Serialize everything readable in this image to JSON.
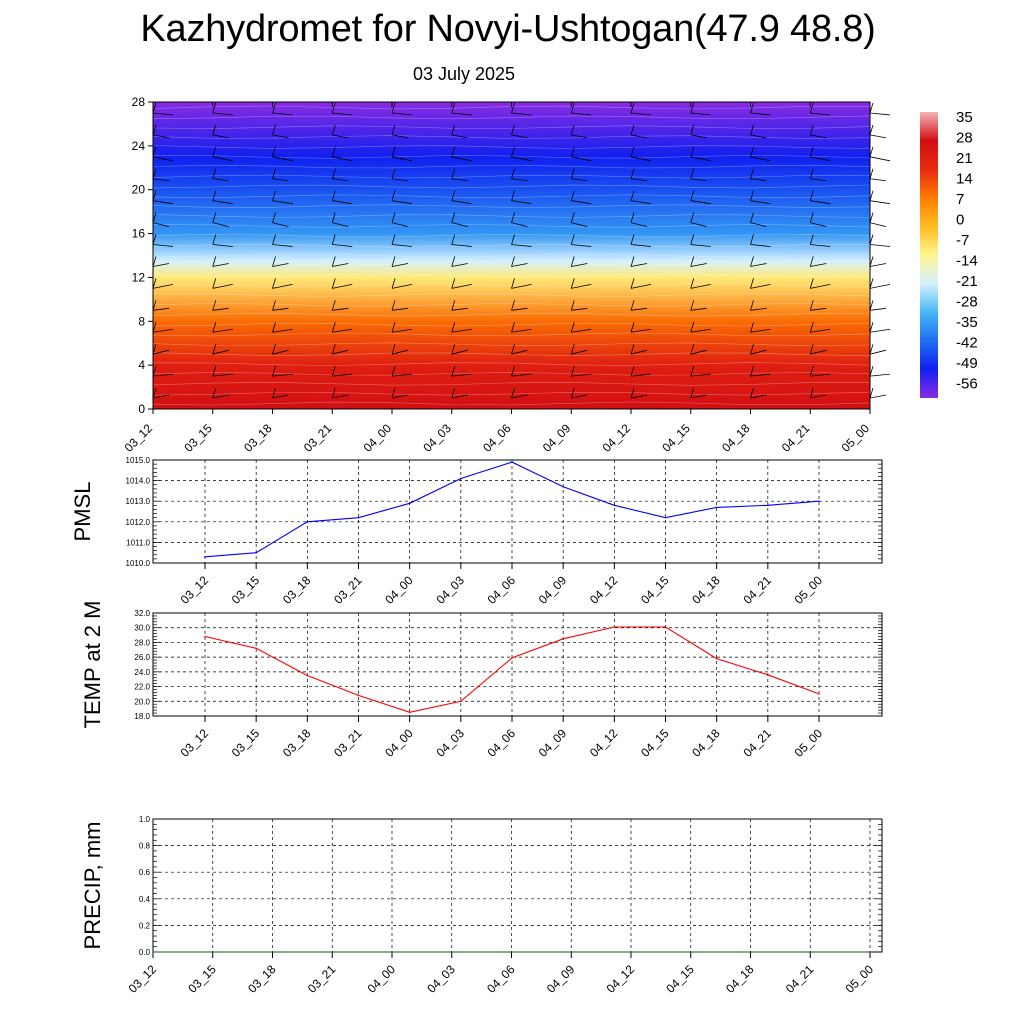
{
  "title": "Kazhydromet for Novyi-Ushtogan(47.9 48.8)",
  "subtitle": "03 July 2025",
  "chart_data": [
    {
      "type": "heatmap",
      "x_ticks": [
        "03_12",
        "03_15",
        "03_18",
        "03_21",
        "04_00",
        "04_03",
        "04_06",
        "04_09",
        "04_12",
        "04_15",
        "04_18",
        "04_21",
        "05_00"
      ],
      "y_ticks": [
        0,
        4,
        8,
        12,
        16,
        20,
        24,
        28
      ],
      "ylim": [
        0,
        28
      ],
      "colorbar_labels": [
        "35",
        "28",
        "21",
        "14",
        "7",
        "0",
        "-7",
        "-14",
        "-21",
        "-28",
        "-35",
        "-42",
        "-49",
        "-56"
      ],
      "colorbar_stops": [
        {
          "value": 38,
          "color": "#f4b4b6"
        },
        {
          "value": 30,
          "color": "#d20f12"
        },
        {
          "value": 20,
          "color": "#e82a10"
        },
        {
          "value": 10,
          "color": "#ff7c00"
        },
        {
          "value": 2,
          "color": "#ffbd1e"
        },
        {
          "value": -8,
          "color": "#fff690"
        },
        {
          "value": -14,
          "color": "#d4f0ff"
        },
        {
          "value": -22,
          "color": "#46b8f5"
        },
        {
          "value": -35,
          "color": "#1f6ff2"
        },
        {
          "value": -48,
          "color": "#1020f0"
        },
        {
          "value": -60,
          "color": "#8a2be2"
        }
      ],
      "profile": [
        {
          "height": 0,
          "temp": 30
        },
        {
          "height": 4,
          "temp": 24
        },
        {
          "height": 8,
          "temp": 12
        },
        {
          "height": 12,
          "temp": -6
        },
        {
          "height": 13.5,
          "temp": -14
        },
        {
          "height": 16,
          "temp": -28
        },
        {
          "height": 20,
          "temp": -40
        },
        {
          "height": 23,
          "temp": -48
        },
        {
          "height": 28,
          "temp": -60
        }
      ],
      "wind_barbs": "wind barbs at every time step and level"
    },
    {
      "type": "line",
      "ylabel": "PMSL",
      "x": [
        "03_12",
        "03_15",
        "03_18",
        "03_21",
        "04_00",
        "04_03",
        "04_06",
        "04_09",
        "04_12",
        "04_15",
        "04_18",
        "04_21",
        "05_00"
      ],
      "series": [
        {
          "color": "#0000ff",
          "values": [
            1010.3,
            1010.5,
            1012.0,
            1012.2,
            1012.9,
            1014.1,
            1014.9,
            1013.7,
            1012.8,
            1012.2,
            1012.7,
            1012.8,
            1013.0
          ]
        }
      ],
      "ylim": [
        1010.0,
        1015.0
      ],
      "y_ticks": [
        "1010.0",
        "1011.0",
        "1012.0",
        "1013.0",
        "1014.0",
        "1015.0"
      ],
      "grid": true
    },
    {
      "type": "line",
      "ylabel": "TEMP at 2 M",
      "x": [
        "03_12",
        "03_15",
        "03_18",
        "03_21",
        "04_00",
        "04_03",
        "04_06",
        "04_09",
        "04_12",
        "04_15",
        "04_18",
        "04_21",
        "05_00"
      ],
      "series": [
        {
          "color": "#ff0000",
          "values": [
            28.8,
            27.2,
            23.5,
            20.8,
            18.5,
            20.0,
            25.9,
            28.5,
            30.1,
            30.1,
            25.8,
            23.6,
            21.0
          ]
        }
      ],
      "ylim": [
        18.0,
        32.0
      ],
      "y_ticks": [
        "18.0",
        "20.0",
        "22.0",
        "24.0",
        "26.0",
        "28.0",
        "30.0",
        "32.0"
      ],
      "grid": true
    },
    {
      "type": "line",
      "ylabel": "PRECIP, mm",
      "x": [
        "03_12",
        "03_15",
        "03_18",
        "03_21",
        "04_00",
        "04_03",
        "04_06",
        "04_09",
        "04_12",
        "04_15",
        "04_18",
        "04_21",
        "05_00"
      ],
      "series": [
        {
          "color": "#006400",
          "values": [
            0,
            0,
            0,
            0,
            0,
            0,
            0,
            0,
            0,
            0,
            0,
            0,
            0
          ]
        }
      ],
      "ylim": [
        0.0,
        1.0
      ],
      "y_ticks": [
        "0.0",
        "0.2",
        "0.4",
        "0.6",
        "0.8",
        "1.0"
      ],
      "grid": true
    }
  ]
}
